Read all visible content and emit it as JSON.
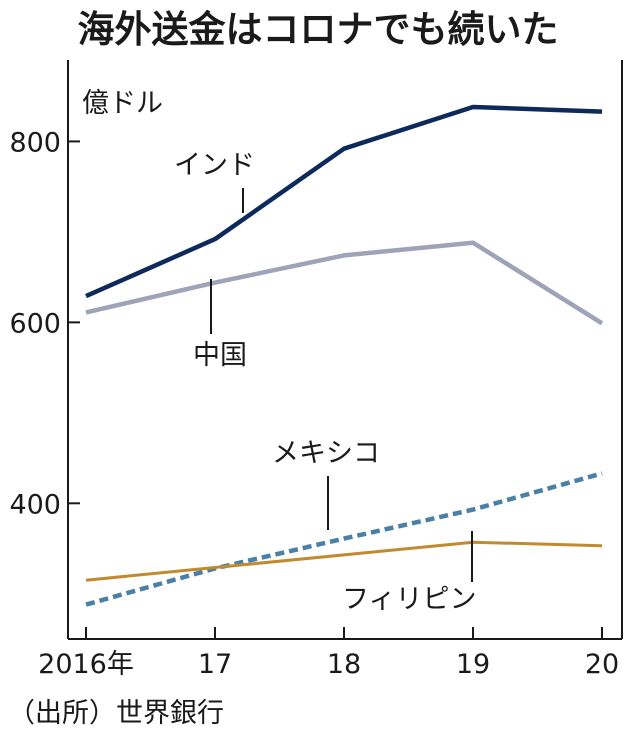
{
  "chart_data": {
    "type": "line",
    "title": "海外送金はコロナでも続いた",
    "unit_label": "億ドル",
    "source": "（出所）世界銀行",
    "categories": [
      "2016年",
      "17",
      "18",
      "19",
      "20"
    ],
    "ylim": [
      250,
      890
    ],
    "yticks": [
      400,
      600,
      800
    ],
    "grid": false,
    "series": [
      {
        "name": "インド",
        "values": [
          629,
          692,
          792,
          838,
          833
        ],
        "color": "#0e2a5c",
        "dash": false,
        "width": 4.5
      },
      {
        "name": "中国",
        "values": [
          611,
          644,
          674,
          688,
          599
        ],
        "color": "#9fa3b8",
        "dash": false,
        "width": 4.5
      },
      {
        "name": "メキシコ",
        "values": [
          288,
          328,
          361,
          393,
          433
        ],
        "color": "#4a7fa6",
        "dash": true,
        "width": 4.5
      },
      {
        "name": "フィリピン",
        "values": [
          315,
          329,
          343,
          357,
          353
        ],
        "color": "#c28a2e",
        "dash": false,
        "width": 3
      }
    ]
  }
}
